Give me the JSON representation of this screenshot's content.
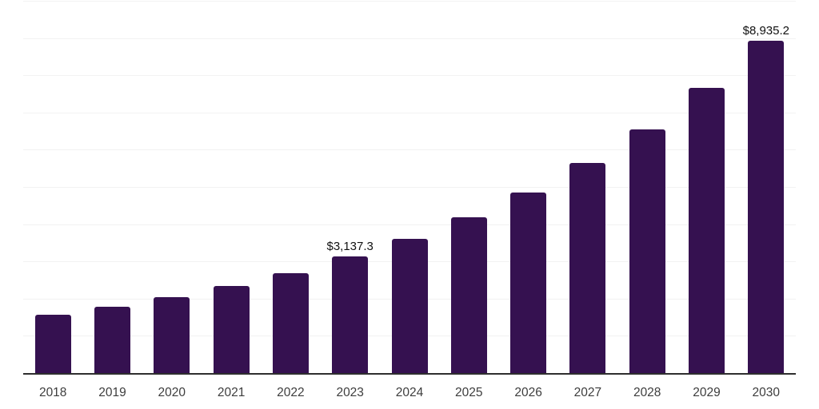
{
  "chart_data": {
    "type": "bar",
    "title": "",
    "xlabel": "",
    "ylabel": "",
    "categories": [
      "2018",
      "2019",
      "2020",
      "2021",
      "2022",
      "2023",
      "2024",
      "2025",
      "2026",
      "2027",
      "2028",
      "2029",
      "2030"
    ],
    "values": [
      1570,
      1790,
      2040,
      2340,
      2690,
      3137.3,
      3610,
      4190,
      4855,
      5650,
      6550,
      7670,
      8935.2
    ],
    "data_labels": {
      "2023": "$3,137.3",
      "2030": "$8,935.2"
    },
    "ylim": [
      0,
      10000
    ],
    "gridline_interval": 1000,
    "grid": "horizontal",
    "legend": "none",
    "colors": {
      "bar": "#351150",
      "axis_line": "#2e2e2e",
      "gridline": "#f2f2f2",
      "tick_label": "#3d3d3d",
      "value_label": "#111111",
      "background": "#ffffff"
    }
  }
}
